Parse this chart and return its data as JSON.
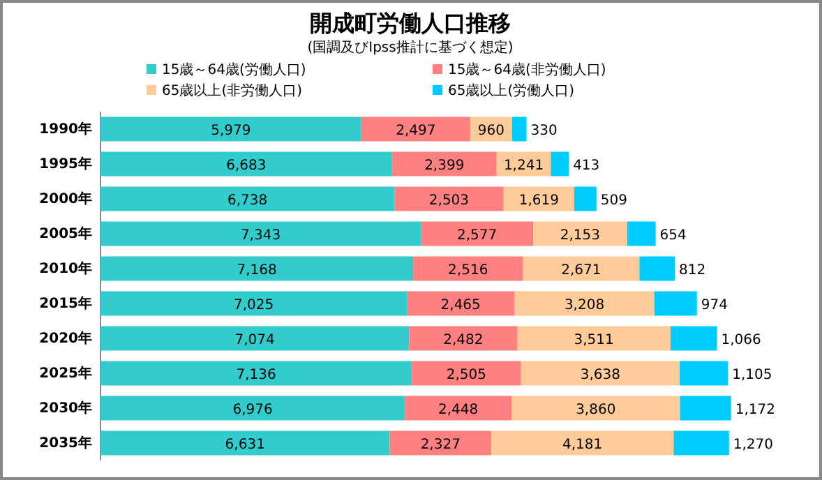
{
  "chart_data": {
    "type": "bar",
    "orientation": "horizontal",
    "stacked": true,
    "title": "開成町労働人口推移",
    "subtitle": "(国調及びIpss推計に基づく想定)",
    "categories": [
      "1990年",
      "1995年",
      "2000年",
      "2005年",
      "2010年",
      "2015年",
      "2020年",
      "2025年",
      "2030年",
      "2035年"
    ],
    "series": [
      {
        "name": "15歳～64歳(労働人口)",
        "color": "#33cccc",
        "values": [
          5979,
          6683,
          6738,
          7343,
          7168,
          7025,
          7074,
          7136,
          6976,
          6631
        ],
        "value_labels": [
          "5,979",
          "6,683",
          "6,738",
          "7,343",
          "7,168",
          "7,025",
          "7,074",
          "7,136",
          "6,976",
          "6,631"
        ]
      },
      {
        "name": "15歳～64歳(非労働人口)",
        "color": "#ff8080",
        "values": [
          2497,
          2399,
          2503,
          2577,
          2516,
          2465,
          2482,
          2505,
          2448,
          2327
        ],
        "value_labels": [
          "2,497",
          "2,399",
          "2,503",
          "2,577",
          "2,516",
          "2,465",
          "2,482",
          "2,505",
          "2,448",
          "2,327"
        ]
      },
      {
        "name": "65歳以上(非労働人口)",
        "color": "#ffcc99",
        "values": [
          960,
          1241,
          1619,
          2153,
          2671,
          3208,
          3511,
          3638,
          3860,
          4181
        ],
        "value_labels": [
          "960",
          "1,241",
          "1,619",
          "2,153",
          "2,671",
          "3,208",
          "3,511",
          "3,638",
          "3,860",
          "4,181"
        ]
      },
      {
        "name": "65歳以上(労働人口)",
        "color": "#00ccff",
        "values": [
          330,
          413,
          509,
          654,
          812,
          974,
          1066,
          1105,
          1172,
          1270
        ],
        "value_labels": [
          "330",
          "413",
          "509",
          "654",
          "812",
          "974",
          "1,066",
          "1,105",
          "1,172",
          "1,270"
        ]
      }
    ],
    "legend": "top"
  }
}
